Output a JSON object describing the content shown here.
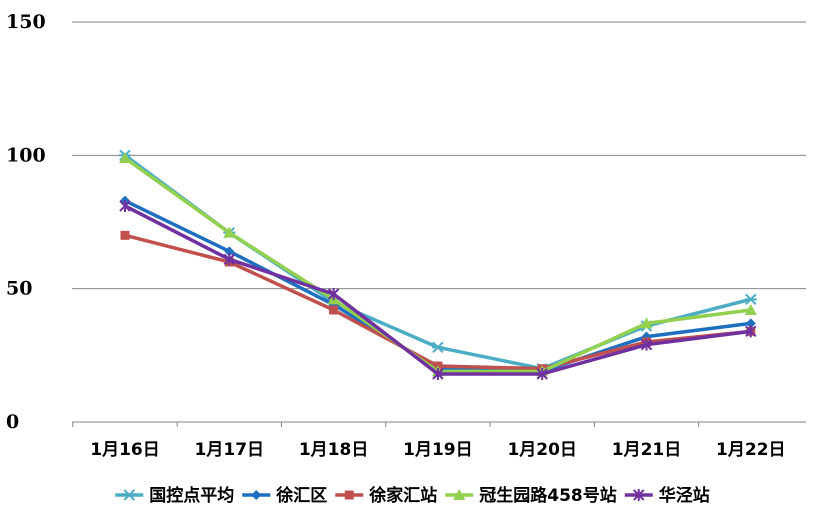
{
  "chart_data": {
    "type": "line",
    "title": "",
    "xlabel": "",
    "ylabel": "",
    "categories": [
      "1月16日",
      "1月17日",
      "1月18日",
      "1月19日",
      "1月20日",
      "1月21日",
      "1月22日"
    ],
    "ylim": [
      0,
      150
    ],
    "yticks": [
      0,
      50,
      100,
      150
    ],
    "grid": true,
    "legend_position": "bottom",
    "series": [
      {
        "name": "国控点平均",
        "color": "#4BACC6",
        "marker": "asterisk",
        "values": [
          100,
          71,
          45,
          28,
          20,
          36,
          46
        ]
      },
      {
        "name": "徐汇区",
        "color": "#1F6FC0",
        "marker": "diamond",
        "values": [
          83,
          64,
          44,
          20,
          19,
          32,
          37
        ]
      },
      {
        "name": "徐家汇站",
        "color": "#C0504D",
        "marker": "square",
        "values": [
          70,
          60,
          42,
          21,
          20,
          30,
          34
        ]
      },
      {
        "name": "冠生园路458号站",
        "color": "#92D050",
        "marker": "triangle",
        "values": [
          99,
          71,
          46,
          19,
          19,
          37,
          42
        ]
      },
      {
        "name": "华泾站",
        "color": "#7030A0",
        "marker": "x-star",
        "values": [
          81,
          61,
          48,
          18,
          18,
          29,
          34
        ]
      }
    ]
  }
}
